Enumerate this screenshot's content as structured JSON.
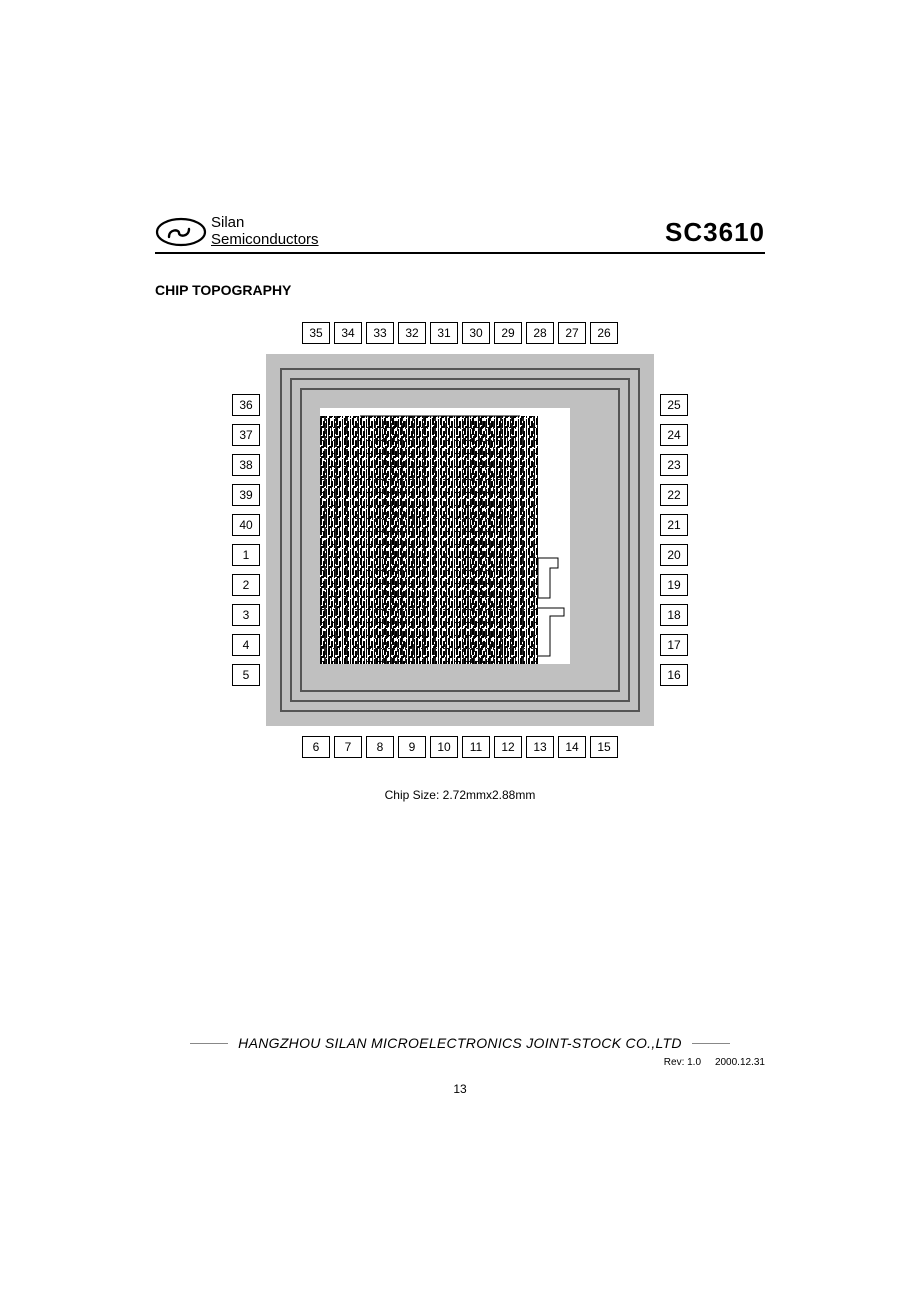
{
  "header": {
    "brand_line1": "Silan",
    "brand_line2": "Semiconductors",
    "part_number": "SC3610"
  },
  "section_title": "CHIP TOPOGRAPHY",
  "chip": {
    "pins_top": [
      "35",
      "34",
      "33",
      "32",
      "31",
      "30",
      "29",
      "28",
      "27",
      "26"
    ],
    "pins_right": [
      "25",
      "24",
      "23",
      "22",
      "21",
      "20",
      "19",
      "18",
      "17",
      "16"
    ],
    "pins_bottom": [
      "6",
      "7",
      "8",
      "9",
      "10",
      "11",
      "12",
      "13",
      "14",
      "15"
    ],
    "pins_left": [
      "36",
      "37",
      "38",
      "39",
      "40",
      "1",
      "2",
      "3",
      "4",
      "5"
    ],
    "size_label": "Chip Size: 2.72mmx2.88mm",
    "die_bg": "#c0c0c0",
    "ring_color": "#555555",
    "core_bg": "#ffffff",
    "pin_border": "#000000",
    "pin_bg": "#ffffff",
    "pin_fontsize": 12
  },
  "footer": {
    "company": "HANGZHOU SILAN MICROELECTRONICS JOINT-STOCK  CO.,LTD",
    "rev": "Rev: 1.0",
    "date": "2000.12.31",
    "page_number": "13"
  }
}
